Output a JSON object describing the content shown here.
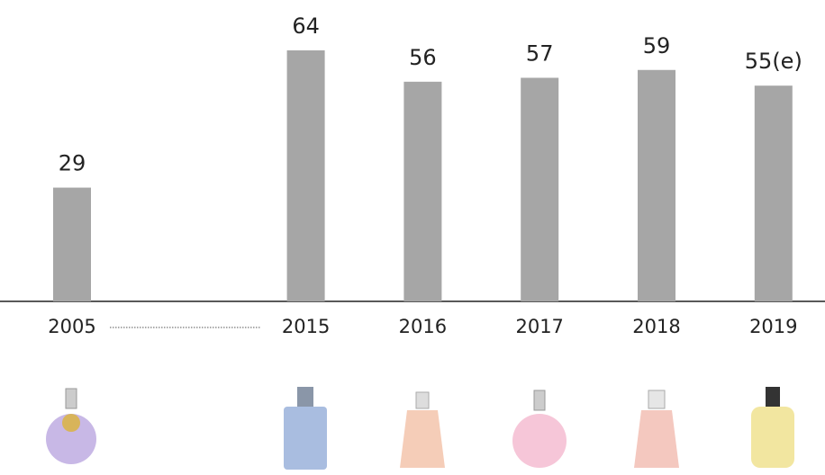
{
  "chart_data": {
    "type": "bar",
    "categories": [
      "2005",
      null,
      "2015",
      "2016",
      "2017",
      "2018",
      "2019"
    ],
    "values": [
      29,
      null,
      64,
      56,
      57,
      59,
      55
    ],
    "value_labels": [
      "29",
      null,
      "64",
      "56",
      "57",
      "59",
      "55(e)"
    ],
    "color": "#a6a6a6"
  }
}
